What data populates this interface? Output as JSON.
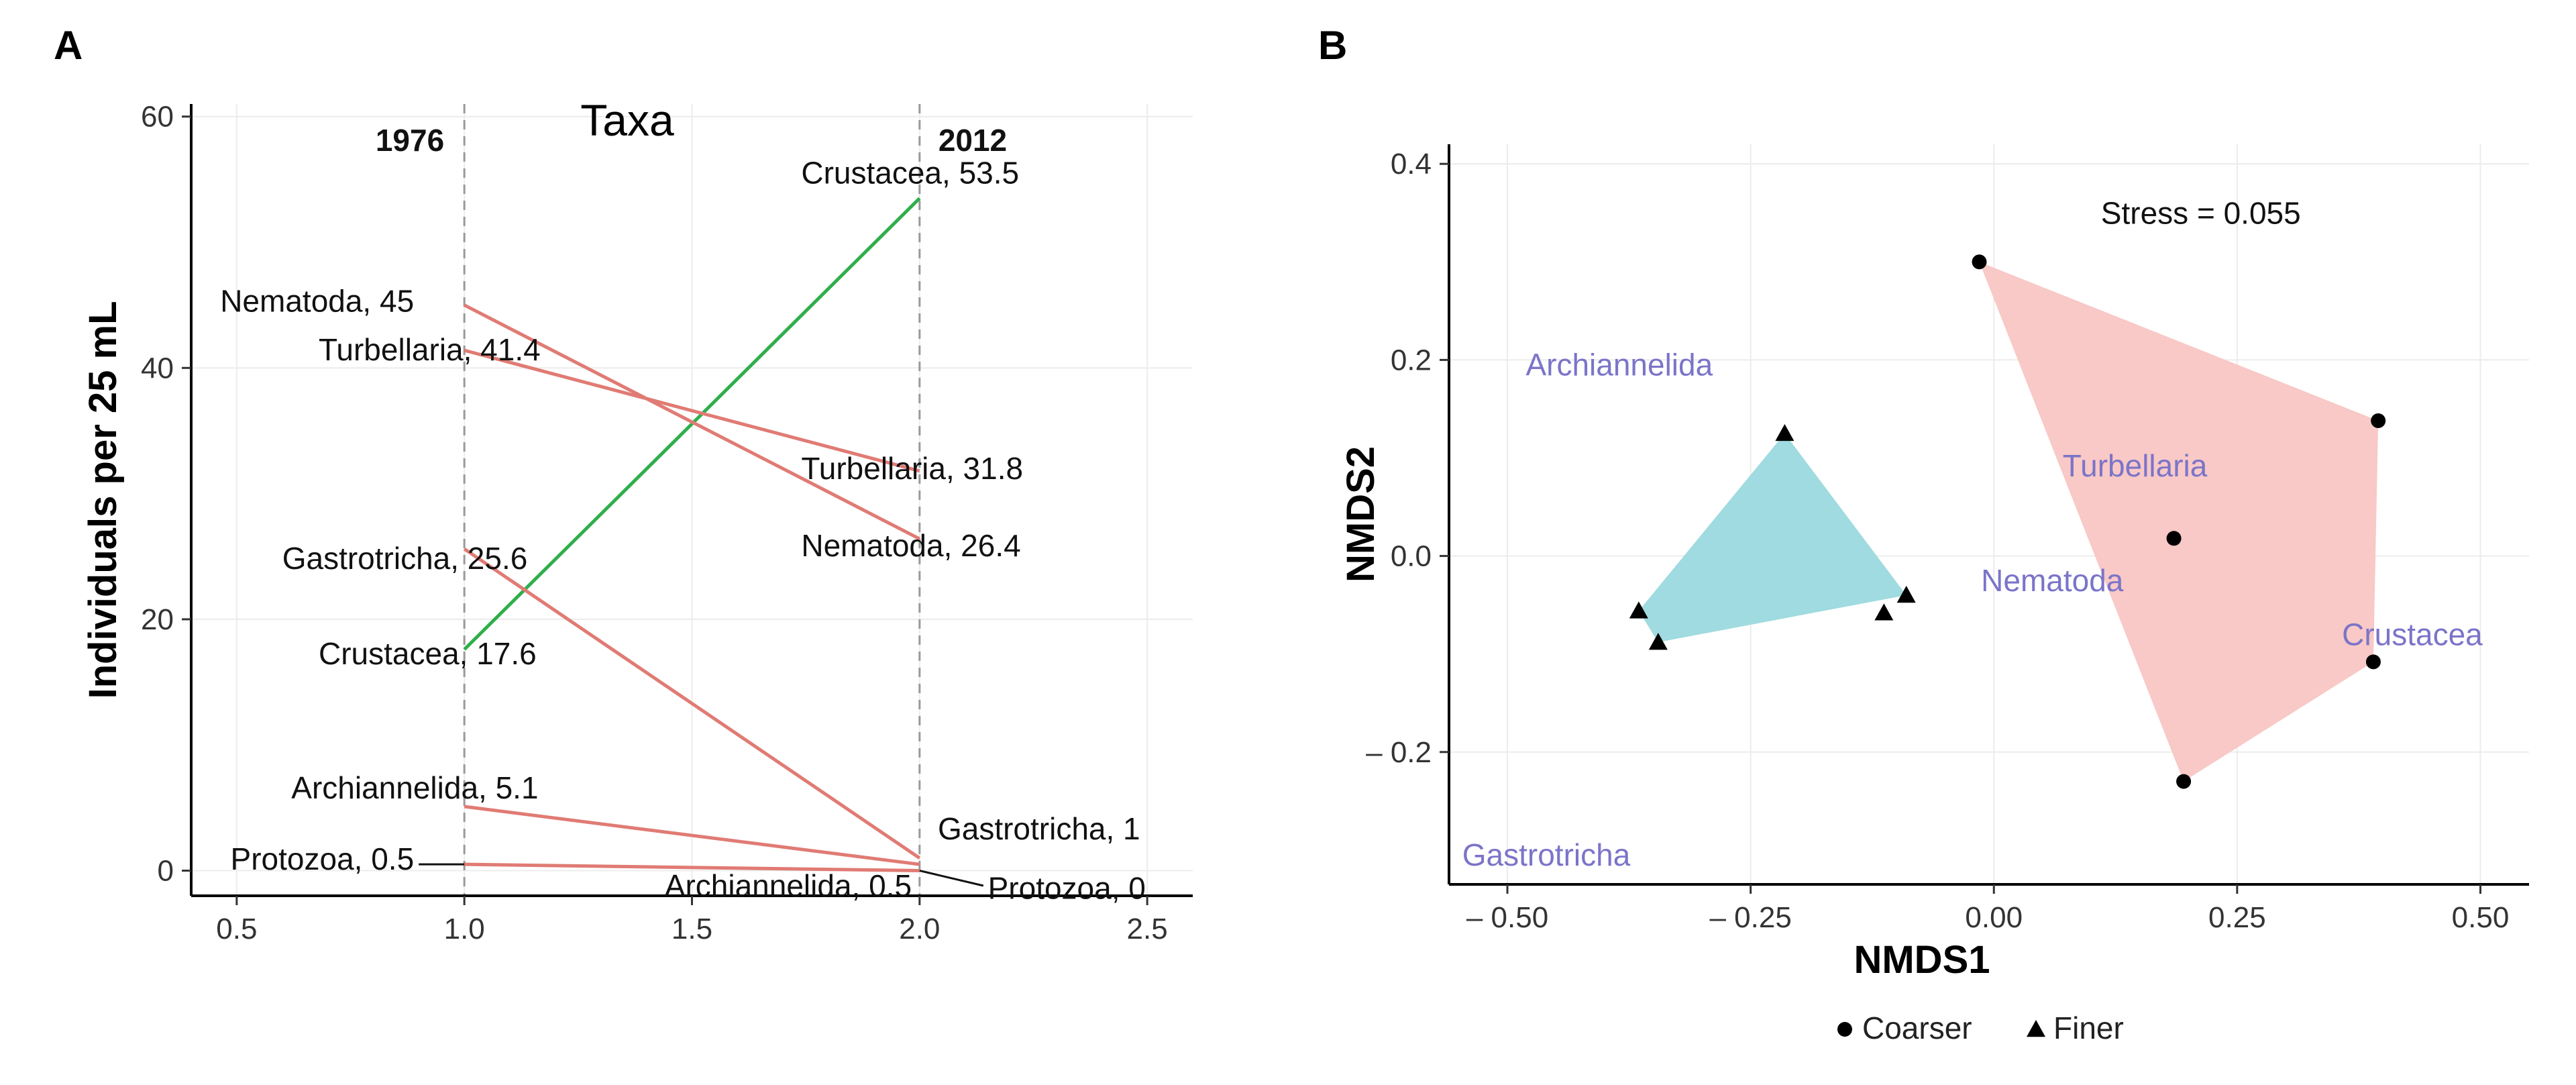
{
  "chart_data": [
    {
      "panel": "A",
      "type": "line",
      "title": "",
      "legend_title": "Taxa",
      "ylabel": "Individuals per 25 mL",
      "xlabel": "",
      "xlim": [
        0.4,
        2.6
      ],
      "ylim": [
        -2,
        61
      ],
      "xticks": [
        0.5,
        1.0,
        1.5,
        2.0,
        2.5
      ],
      "xtick_labels": [
        "0.5",
        "1.0",
        "1.5",
        "2.0",
        "2.5"
      ],
      "yticks": [
        0,
        20,
        40,
        60
      ],
      "ytick_labels": [
        "0",
        "20",
        "40",
        "60"
      ],
      "year_labels": [
        "1976",
        "2012"
      ],
      "colors": {
        "decrease": "#e07b74",
        "increase": "#2fae4b",
        "grid": "#ececec",
        "vline": "#999999"
      },
      "series": [
        {
          "name": "Crustacea",
          "values": [
            17.6,
            53.5
          ],
          "left_label": "Crustacea, 17.6",
          "right_label": "Crustacea, 53.5",
          "trend": "increase"
        },
        {
          "name": "Nematoda",
          "values": [
            45,
            26.4
          ],
          "left_label": "Nematoda, 45",
          "right_label": "Nematoda, 26.4",
          "trend": "decrease"
        },
        {
          "name": "Turbellaria",
          "values": [
            41.4,
            31.8
          ],
          "left_label": "Turbellaria, 41.4",
          "right_label": "Turbellaria, 31.8",
          "trend": "decrease"
        },
        {
          "name": "Gastrotricha",
          "values": [
            25.6,
            1
          ],
          "left_label": "Gastrotricha, 25.6",
          "right_label": "Gastrotricha, 1",
          "trend": "decrease"
        },
        {
          "name": "Archiannelida",
          "values": [
            5.1,
            0.5
          ],
          "left_label": "Archiannelida, 5.1",
          "right_label": "Archiannelida, 0.5",
          "trend": "decrease"
        },
        {
          "name": "Protozoa",
          "values": [
            0.5,
            0
          ],
          "left_label": "Protozoa, 0.5",
          "right_label": "Protozoa, 0",
          "trend": "decrease"
        }
      ]
    },
    {
      "panel": "B",
      "type": "scatter",
      "title": "",
      "xlabel": "NMDS1",
      "ylabel": "NMDS2",
      "xlim": [
        -0.56,
        0.55
      ],
      "ylim": [
        -0.335,
        0.42
      ],
      "xticks": [
        -0.5,
        -0.25,
        0.0,
        0.25,
        0.5
      ],
      "xtick_labels": [
        "– 0.50",
        "– 0.25",
        "0.00",
        "0.25",
        "0.50"
      ],
      "yticks": [
        -0.2,
        0.0,
        0.2,
        0.4
      ],
      "ytick_labels": [
        "– 0.2",
        "0.0",
        "0.2",
        "0.4"
      ],
      "stress_label": "Stress =  0.055",
      "legend": {
        "position": "bottom",
        "entries": [
          "Coarser",
          "Finer"
        ]
      },
      "colors": {
        "coarser_fill": "#f8c9c6",
        "finer_fill": "#9fdbe0",
        "species": "#7b74c9",
        "grid": "#ececec"
      },
      "series": [
        {
          "name": "Coarser",
          "marker": "circle",
          "x": [
            -0.015,
            0.395,
            0.39,
            0.195,
            0.185
          ],
          "y": [
            0.3,
            0.138,
            -0.108,
            -0.23,
            0.018
          ]
        },
        {
          "name": "Finer",
          "marker": "triangle",
          "x": [
            -0.215,
            -0.09,
            -0.113,
            -0.345,
            -0.365
          ],
          "y": [
            0.125,
            -0.04,
            -0.058,
            -0.088,
            -0.056
          ]
        }
      ],
      "hulls": [
        {
          "group": "Coarser",
          "x": [
            -0.015,
            0.395,
            0.39,
            0.195
          ],
          "y": [
            0.3,
            0.138,
            -0.108,
            -0.23
          ]
        },
        {
          "group": "Finer",
          "x": [
            -0.215,
            -0.09,
            -0.345,
            -0.365
          ],
          "y": [
            0.125,
            -0.04,
            -0.088,
            -0.056
          ]
        }
      ],
      "species": [
        {
          "name": "Archiannelida",
          "x": -0.385,
          "y": 0.195
        },
        {
          "name": "Turbellaria",
          "x": 0.145,
          "y": 0.092
        },
        {
          "name": "Nematoda",
          "x": 0.06,
          "y": -0.025
        },
        {
          "name": "Crustacea",
          "x": 0.43,
          "y": -0.08
        },
        {
          "name": "Gastrotricha",
          "x": -0.46,
          "y": -0.305
        }
      ]
    }
  ]
}
